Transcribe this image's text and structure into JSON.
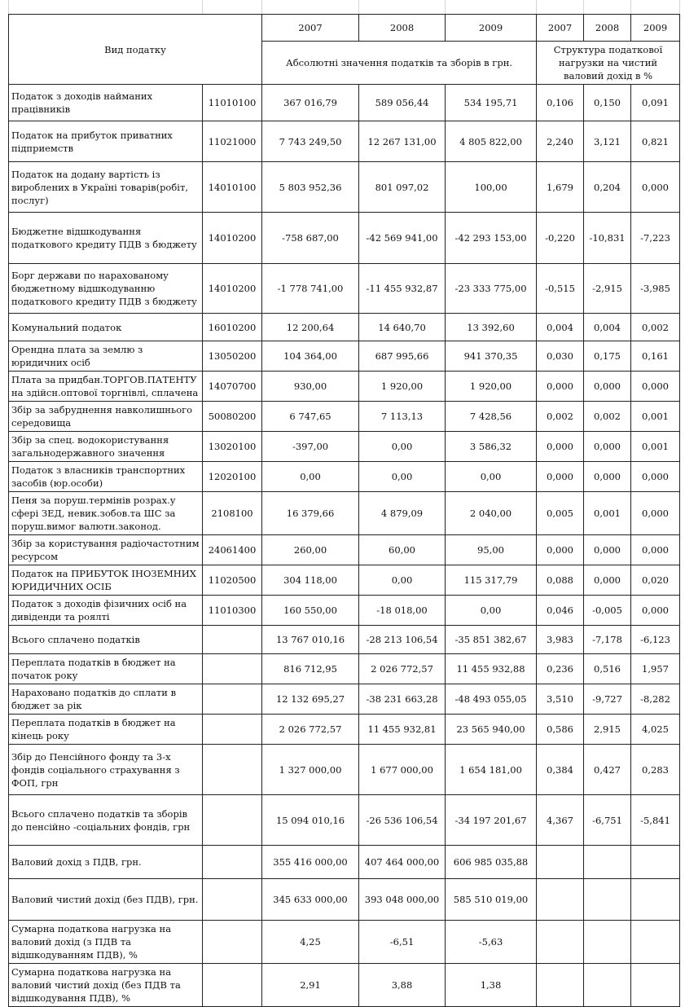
{
  "header": {
    "title": "Вид податку",
    "years": [
      "2007",
      "2008",
      "2009"
    ],
    "struct_years": [
      "2007",
      "2008",
      "2009"
    ],
    "absolute_label": "Абсолютні значення податків та зборів в грн.",
    "structure_label": "Структура податкової нагрузки на чистий валовий дохід в %"
  },
  "rows": [
    {
      "name": "Податок з доходів найманих працівників",
      "code": "11010100",
      "v2007": "367 016,79",
      "v2008": "589 056,44",
      "v2009": "534 195,71",
      "s2007": "0,106",
      "s2008": "0,150",
      "s2009": "0,091"
    },
    {
      "name": "Податок на прибуток приватних підприемств",
      "code": "11021000",
      "v2007": "7 743 249,50",
      "v2008": "12 267 131,00",
      "v2009": "4 805 822,00",
      "s2007": "2,240",
      "s2008": "3,121",
      "s2009": "0,821"
    },
    {
      "name": "Податок на додану вартість із вироблених в Україні товарів(робіт, послуг)",
      "code": "14010100",
      "v2007": "5 803 952,36",
      "v2008": "801 097,02",
      "v2009": "100,00",
      "s2007": "1,679",
      "s2008": "0,204",
      "s2009": "0,000"
    },
    {
      "name": "Бюджетне відшкодування податкового кредиту ПДВ  з бюджету",
      "code": "14010200",
      "v2007": "-758 687,00",
      "v2008": "-42 569 941,00",
      "v2009": "-42 293 153,00",
      "s2007": "-0,220",
      "s2008": "-10,831",
      "s2009": "-7,223"
    },
    {
      "name": "Борг держави по нарахованому бюджетному відшкодуванню податкового кредиту ПДВ  з бюджету",
      "code": "14010200",
      "v2007": "-1 778 741,00",
      "v2008": "-11 455 932,87",
      "v2009": "-23 333 775,00",
      "s2007": "-0,515",
      "s2008": "-2,915",
      "s2009": "-3,985"
    },
    {
      "name": "Комунальний податок",
      "code": "16010200",
      "v2007": "12 200,64",
      "v2008": "14 640,70",
      "v2009": "13 392,60",
      "s2007": "0,004",
      "s2008": "0,004",
      "s2009": "0,002"
    },
    {
      "name": "Орендна плата за землю з юридичних осіб",
      "code": "13050200",
      "v2007": "104 364,00",
      "v2008": "687 995,66",
      "v2009": "941 370,35",
      "s2007": "0,030",
      "s2008": "0,175",
      "s2009": "0,161"
    },
    {
      "name": "Плата за придбан.ТОРГОВ.ПАТЕНТУ на здійсн.оптової торгнівлі, сплачена",
      "code": "14070700",
      "v2007": "930,00",
      "v2008": "1 920,00",
      "v2009": "1 920,00",
      "s2007": "0,000",
      "s2008": "0,000",
      "s2009": "0,000"
    },
    {
      "name": "Збір за забруднення навколишнього середовища",
      "code": "50080200",
      "v2007": "6 747,65",
      "v2008": "7 113,13",
      "v2009": "7 428,56",
      "s2007": "0,002",
      "s2008": "0,002",
      "s2009": "0,001"
    },
    {
      "name": "Збір за спец. водокористування загальнодержавного значення",
      "code": "13020100",
      "v2007": "-397,00",
      "v2008": "0,00",
      "v2009": "3 586,32",
      "s2007": "0,000",
      "s2008": "0,000",
      "s2009": "0,001"
    },
    {
      "name": "Податок  з власників транспортних засобів (юр.особи)",
      "code": "12020100",
      "v2007": "0,00",
      "v2008": "0,00",
      "v2009": "0,00",
      "s2007": "0,000",
      "s2008": "0,000",
      "s2009": "0,000"
    },
    {
      "name": "Пеня за поруш.термінів розрах.у сфері ЗЕД, невик.зобов.та ШС за поруш.вимог валютн.законод.",
      "code": "2108100",
      "v2007": "16 379,66",
      "v2008": "4 879,09",
      "v2009": "2 040,00",
      "s2007": "0,005",
      "s2008": "0,001",
      "s2009": "0,000"
    },
    {
      "name": "Збір за користування радіочастотним ресурсом",
      "code": "24061400",
      "v2007": "260,00",
      "v2008": "60,00",
      "v2009": "95,00",
      "s2007": "0,000",
      "s2008": "0,000",
      "s2009": "0,000"
    },
    {
      "name": "Податок на ПРИБУТОК ІНОЗЕМНИХ ЮРИДИЧНИХ ОСІБ",
      "code": "11020500",
      "v2007": "304 118,00",
      "v2008": "0,00",
      "v2009": "115 317,79",
      "s2007": "0,088",
      "s2008": "0,000",
      "s2009": "0,020"
    },
    {
      "name": "Податок з доходів фізичних осіб на дивіденди та роялті",
      "code": "11010300",
      "v2007": "160 550,00",
      "v2008": "-18 018,00",
      "v2009": "0,00",
      "s2007": "0,046",
      "s2008": "-0,005",
      "s2009": "0,000"
    },
    {
      "name": "Всього сплачено податків",
      "code": "",
      "v2007": "13 767 010,16",
      "v2008": "-28 213 106,54",
      "v2009": "-35 851 382,67",
      "s2007": "3,983",
      "s2008": "-7,178",
      "s2009": "-6,123"
    },
    {
      "name": "Переплата податків в бюджет на початок року",
      "code": "",
      "v2007": "816 712,95",
      "v2008": "2 026 772,57",
      "v2009": "11 455 932,88",
      "s2007": "0,236",
      "s2008": "0,516",
      "s2009": "1,957"
    },
    {
      "name": "Нараховано податків до сплати в бюджет за рік",
      "code": "",
      "v2007": "12 132 695,27",
      "v2008": "-38 231 663,28",
      "v2009": "-48 493 055,05",
      "s2007": "3,510",
      "s2008": "-9,727",
      "s2009": "-8,282"
    },
    {
      "name": "Переплата податків в бюджет на кінець року",
      "code": "",
      "v2007": "2 026 772,57",
      "v2008": "11 455 932,81",
      "v2009": "23 565 940,00",
      "s2007": "0,586",
      "s2008": "2,915",
      "s2009": "4,025"
    },
    {
      "name": "Збір до Пенсійного фонду  та 3-х фондів соціального страхування з ФОП, грн",
      "code": "",
      "v2007": "1 327 000,00",
      "v2008": "1 677 000,00",
      "v2009": "1 654 181,00",
      "s2007": "0,384",
      "s2008": "0,427",
      "s2009": "0,283"
    },
    {
      "name": "Всього сплачено податків та зборів до пенсійно -соціальних фондів, грн",
      "code": "",
      "v2007": "15 094 010,16",
      "v2008": "-26 536 106,54",
      "v2009": "-34 197 201,67",
      "s2007": "4,367",
      "s2008": "-6,751",
      "s2009": "-5,841"
    },
    {
      "name": "Валовий дохід з ПДВ, грн.",
      "code": "",
      "v2007": "355 416 000,00",
      "v2008": "407 464 000,00",
      "v2009": "606 985 035,88",
      "s2007": "",
      "s2008": "",
      "s2009": ""
    },
    {
      "name": "Валовий чистий дохід (без ПДВ), грн.",
      "code": "",
      "v2007": "345 633 000,00",
      "v2008": "393 048 000,00",
      "v2009": "585 510 019,00",
      "s2007": "",
      "s2008": "",
      "s2009": ""
    },
    {
      "name": "Сумарна податкова нагрузка на валовий дохід (з ПДВ та відшкодуванням ПДВ), %",
      "code": "",
      "v2007": "4,25",
      "v2008": "-6,51",
      "v2009": "-5,63",
      "s2007": "",
      "s2008": "",
      "s2009": ""
    },
    {
      "name": "Сумарна податкова нагрузка на валовий чистий дохід (без ПДВ та відшкодування ПДВ), %",
      "code": "",
      "v2007": "2,91",
      "v2008": "3,88",
      "v2009": "1,38",
      "s2007": "",
      "s2008": "",
      "s2009": ""
    }
  ]
}
